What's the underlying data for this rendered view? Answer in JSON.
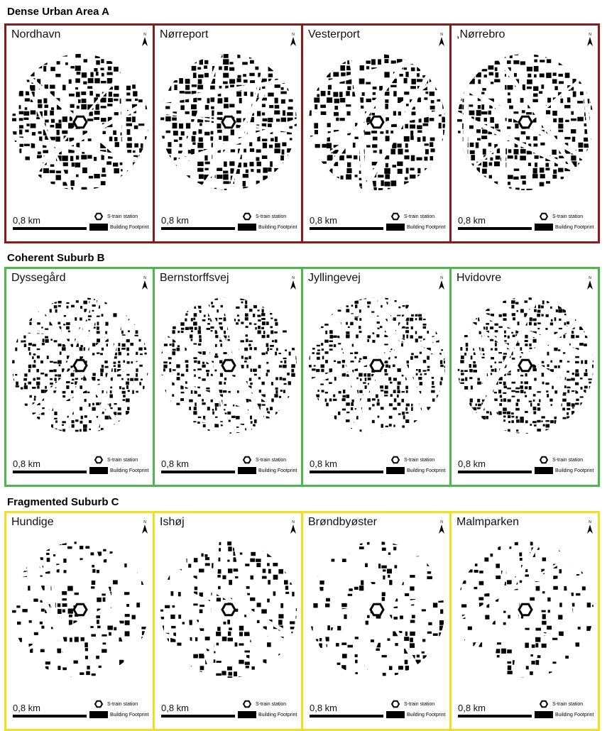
{
  "groups": [
    {
      "title": "Dense Urban Area A",
      "panels": [
        {
          "name": "Nordhavn",
          "density": 0.62,
          "seed": 11
        },
        {
          "name": "Nørreport",
          "density": 0.7,
          "seed": 23
        },
        {
          "name": "Vesterport",
          "density": 0.66,
          "seed": 37
        },
        {
          "name": ",Nørrebro",
          "density": 0.68,
          "seed": 41
        }
      ]
    },
    {
      "title": "Coherent Suburb B",
      "panels": [
        {
          "name": "Dyssegård",
          "density": 0.4,
          "seed": 53
        },
        {
          "name": "Bernstorffsvej",
          "density": 0.38,
          "seed": 61
        },
        {
          "name": "Jyllingevej",
          "density": 0.42,
          "seed": 71
        },
        {
          "name": "Hvidovre",
          "density": 0.44,
          "seed": 83
        }
      ]
    },
    {
      "title": "Fragmented Suburb C",
      "panels": [
        {
          "name": "Hundige",
          "density": 0.3,
          "seed": 97
        },
        {
          "name": "Ishøj",
          "density": 0.36,
          "seed": 101
        },
        {
          "name": "Brøndbyøster",
          "density": 0.28,
          "seed": 113
        },
        {
          "name": "Malmparken",
          "density": 0.26,
          "seed": 127
        }
      ]
    }
  ],
  "scale_label": "0,8 km",
  "legend": {
    "station": "S-train station",
    "footprint": "Building Footprint"
  },
  "north_label": "N",
  "colors": {
    "group_a_border": "#8b1a1a",
    "group_b_border": "#4cb84c",
    "group_c_border": "#f0e020"
  }
}
